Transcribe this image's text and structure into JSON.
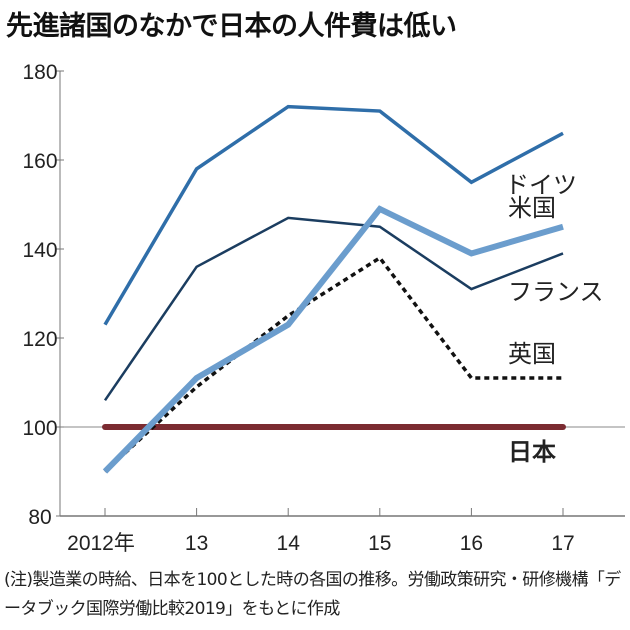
{
  "title": "先進諸国のなかで日本の人件費は低い",
  "note": "(注)製造業の時給、日本を100とした時の各国の推移。労働政策研究・研修機構「データブック国際労働比較2019」をもとに作成",
  "chart_data": {
    "type": "line",
    "title": "先進諸国のなかで日本の人件費は低い",
    "xlabel": "",
    "ylabel": "",
    "categories": [
      "2012年",
      "13",
      "14",
      "15",
      "16",
      "17"
    ],
    "ylim": [
      80,
      180
    ],
    "yticks": [
      80,
      100,
      120,
      140,
      160,
      180
    ],
    "grid": false,
    "series": [
      {
        "name": "ドイツ",
        "values": [
          123,
          158,
          172,
          171,
          155,
          166
        ],
        "color": "#2f6ea9",
        "style": "solid"
      },
      {
        "name": "米国",
        "values": [
          90,
          111,
          123,
          149,
          139,
          145
        ],
        "color": "#6b9dcd",
        "style": "thick"
      },
      {
        "name": "フランス",
        "values": [
          106,
          136,
          147,
          145,
          131,
          139
        ],
        "color": "#1b3d60",
        "style": "solid"
      },
      {
        "name": "英国",
        "values": [
          90,
          109,
          125,
          138,
          111,
          111
        ],
        "color": "#111111",
        "style": "dotted"
      },
      {
        "name": "日本",
        "values": [
          100,
          100,
          100,
          100,
          100,
          100
        ],
        "color": "#7b2b31",
        "style": "thick"
      }
    ]
  }
}
